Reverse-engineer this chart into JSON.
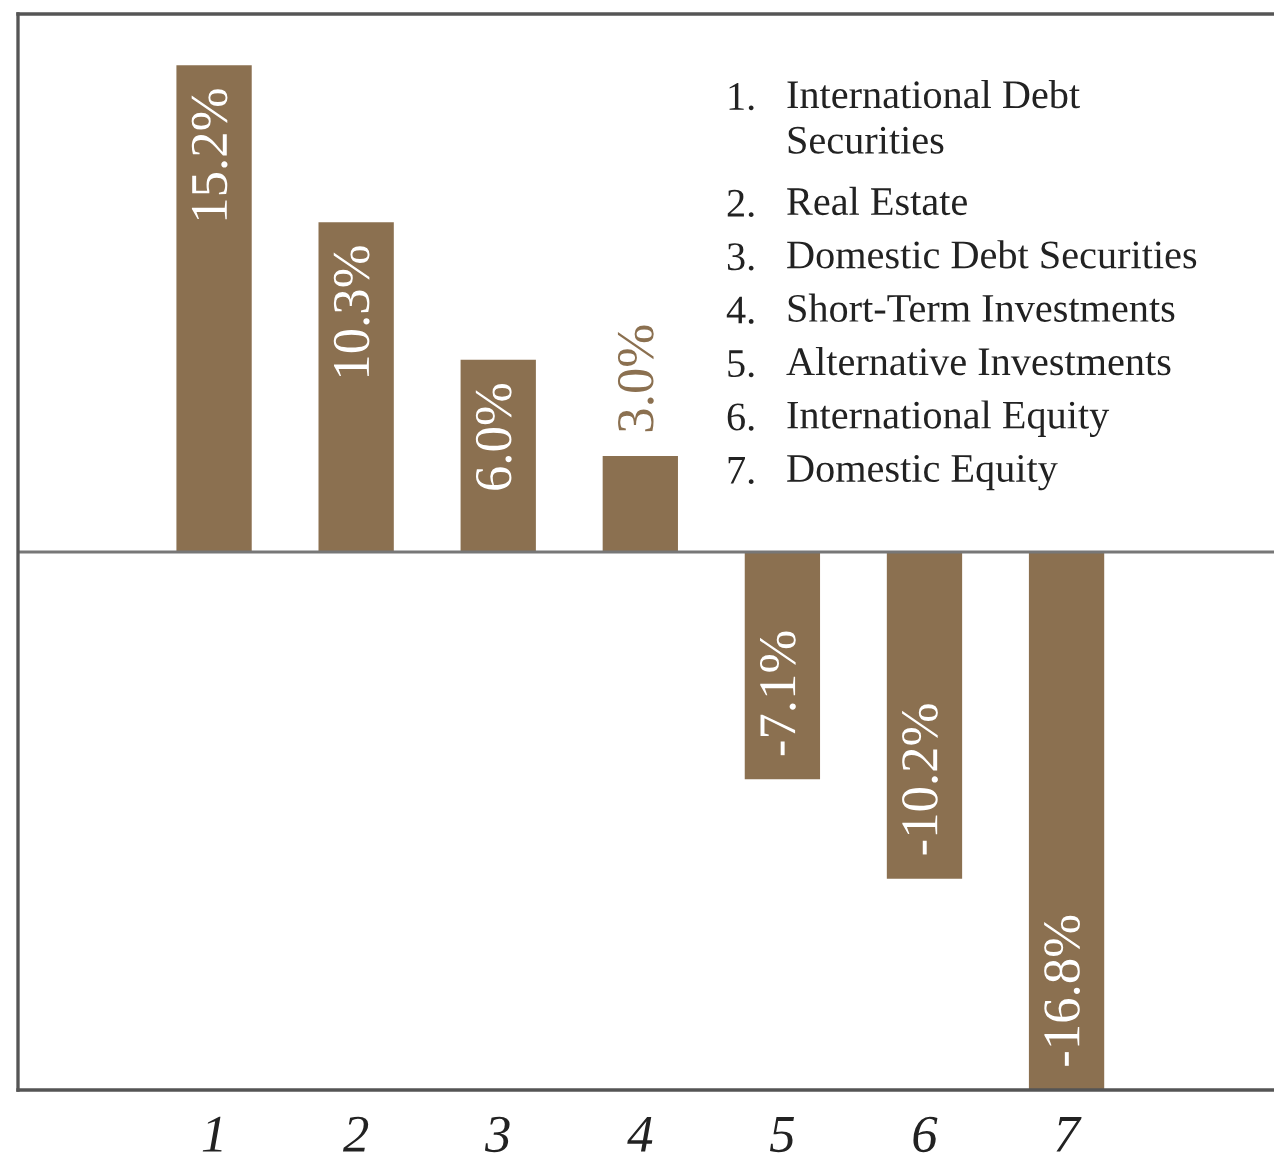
{
  "chart_data": {
    "type": "bar",
    "categories": [
      "1",
      "2",
      "3",
      "4",
      "5",
      "6",
      "7"
    ],
    "values": [
      15.2,
      10.3,
      6.0,
      3.0,
      -7.1,
      -10.2,
      -16.8
    ],
    "color": "#8b7050",
    "value_labels": [
      "15.2%",
      "10.3%",
      "6.0%",
      "3.0%",
      "-7.1%",
      "-10.2%",
      "-16.8%"
    ],
    "ylim": [
      -16.8,
      16.8
    ],
    "tick_labels": "x",
    "ref_lines": [
      {
        "axis": "y",
        "value": 0,
        "color": "#777777"
      }
    ],
    "annotations": [
      "1. International Debt Securities",
      "2. Real Estate",
      "3. Domestic Debt Securities",
      "4. Short-Term Investments",
      "5. Alternative Investments",
      "6. International Equity",
      "7. Domestic Equity"
    ]
  }
}
